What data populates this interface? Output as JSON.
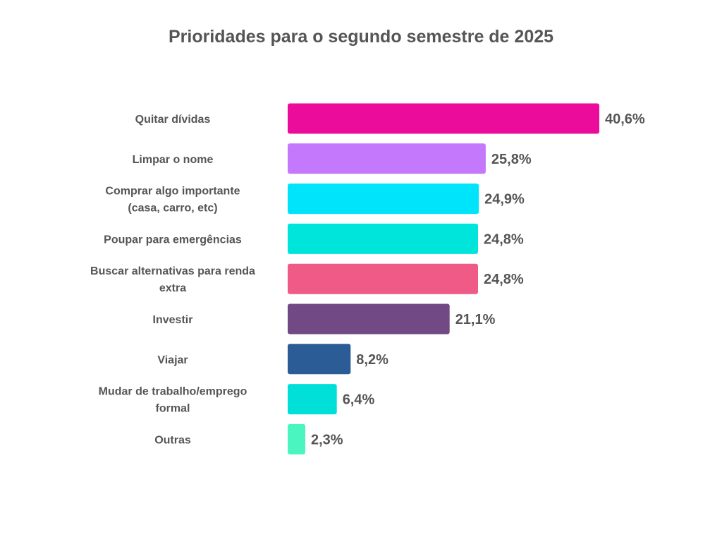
{
  "chart_data": {
    "type": "bar",
    "orientation": "horizontal",
    "title": "Prioridades para o segundo semestre de 2025",
    "categories": [
      "Quitar dívidas",
      "Limpar o nome",
      "Comprar algo importante (casa, carro, etc)",
      "Poupar para emergências",
      "Buscar alternativas para renda extra",
      "Investir",
      "Viajar",
      "Mudar de trabalho/emprego formal",
      "Outras"
    ],
    "category_lines": [
      [
        "Quitar dívidas"
      ],
      [
        "Limpar o nome"
      ],
      [
        "Comprar algo importante",
        "(casa, carro, etc)"
      ],
      [
        "Poupar para emergências"
      ],
      [
        "Buscar alternativas para renda",
        "extra"
      ],
      [
        "Investir"
      ],
      [
        "Viajar"
      ],
      [
        "Mudar de trabalho/emprego",
        "formal"
      ],
      [
        "Outras"
      ]
    ],
    "values": [
      40.6,
      25.8,
      24.9,
      24.8,
      24.8,
      21.1,
      8.2,
      6.4,
      2.3
    ],
    "value_labels": [
      "40,6%",
      "25,8%",
      "24,9%",
      "24,8%",
      "24,8%",
      "21,1%",
      "8,2%",
      "6,4%",
      "2,3%"
    ],
    "colors": [
      "#EC0C9B",
      "#C478FB",
      "#00E4FB",
      "#00E5DB",
      "#EF5A86",
      "#714A85",
      "#2B5C96",
      "#00E0D8",
      "#4BF5C0"
    ],
    "unit": "%",
    "grid": false,
    "legend": "none",
    "xlim": [
      0,
      40.6
    ]
  }
}
